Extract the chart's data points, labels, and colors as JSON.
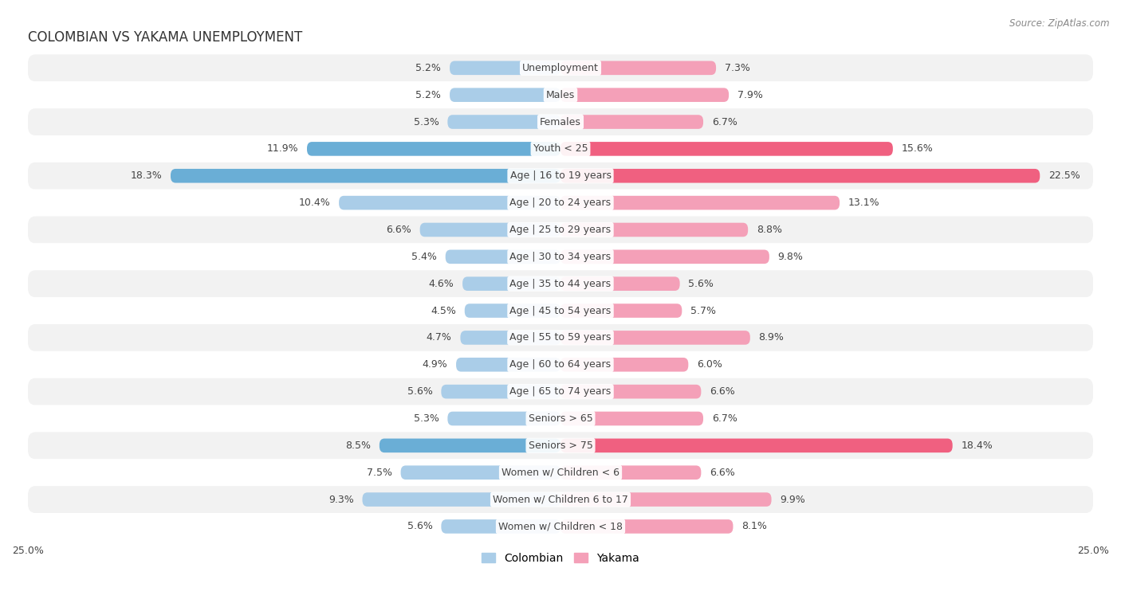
{
  "title": "COLOMBIAN VS YAKAMA UNEMPLOYMENT",
  "source": "Source: ZipAtlas.com",
  "categories": [
    "Unemployment",
    "Males",
    "Females",
    "Youth < 25",
    "Age | 16 to 19 years",
    "Age | 20 to 24 years",
    "Age | 25 to 29 years",
    "Age | 30 to 34 years",
    "Age | 35 to 44 years",
    "Age | 45 to 54 years",
    "Age | 55 to 59 years",
    "Age | 60 to 64 years",
    "Age | 65 to 74 years",
    "Seniors > 65",
    "Seniors > 75",
    "Women w/ Children < 6",
    "Women w/ Children 6 to 17",
    "Women w/ Children < 18"
  ],
  "colombian": [
    5.2,
    5.2,
    5.3,
    11.9,
    18.3,
    10.4,
    6.6,
    5.4,
    4.6,
    4.5,
    4.7,
    4.9,
    5.6,
    5.3,
    8.5,
    7.5,
    9.3,
    5.6
  ],
  "yakama": [
    7.3,
    7.9,
    6.7,
    15.6,
    22.5,
    13.1,
    8.8,
    9.8,
    5.6,
    5.7,
    8.9,
    6.0,
    6.6,
    6.7,
    18.4,
    6.6,
    9.9,
    8.1
  ],
  "xlim": 25.0,
  "colombian_color": "#aacde8",
  "yakama_color": "#f4a0b8",
  "colombian_color_highlight": "#6aaed6",
  "yakama_color_highlight": "#f06080",
  "bg_color": "#ffffff",
  "row_color_odd": "#f2f2f2",
  "row_color_even": "#ffffff",
  "bar_height": 0.52,
  "label_fontsize": 9.0,
  "title_fontsize": 12,
  "source_fontsize": 8.5,
  "tick_fontsize": 9,
  "legend_fontsize": 10,
  "highlight_rows": [
    3,
    4,
    14
  ]
}
